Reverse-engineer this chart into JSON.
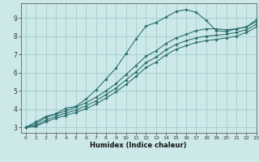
{
  "title": "",
  "xlabel": "Humidex (Indice chaleur)",
  "bg_color": "#cce8e8",
  "grid_color": "#aad0d0",
  "line_color": "#2d7070",
  "xlim": [
    -0.5,
    23
  ],
  "ylim": [
    2.7,
    9.8
  ],
  "xticks": [
    0,
    1,
    2,
    3,
    4,
    5,
    6,
    7,
    8,
    9,
    10,
    11,
    12,
    13,
    14,
    15,
    16,
    17,
    18,
    19,
    20,
    21,
    22,
    23
  ],
  "yticks": [
    3,
    4,
    5,
    6,
    7,
    8,
    9
  ],
  "series": [
    {
      "x": [
        0,
        1,
        2,
        3,
        4,
        5,
        6,
        7,
        8,
        9,
        10,
        11,
        12,
        13,
        14,
        15,
        16,
        17,
        18,
        19,
        20,
        21,
        22,
        23
      ],
      "y": [
        3.0,
        3.3,
        3.6,
        3.75,
        4.05,
        4.15,
        4.55,
        5.05,
        5.65,
        6.25,
        7.05,
        7.85,
        8.55,
        8.75,
        9.05,
        9.35,
        9.45,
        9.3,
        8.85,
        8.3,
        8.25,
        8.4,
        8.5,
        8.9
      ]
    },
    {
      "x": [
        0,
        1,
        2,
        3,
        4,
        5,
        6,
        7,
        8,
        9,
        10,
        11,
        12,
        13,
        14,
        15,
        16,
        17,
        18,
        19,
        20,
        21,
        22,
        23
      ],
      "y": [
        3.0,
        3.2,
        3.55,
        3.72,
        3.9,
        4.1,
        4.35,
        4.65,
        5.0,
        5.4,
        5.9,
        6.4,
        6.9,
        7.2,
        7.6,
        7.9,
        8.1,
        8.3,
        8.4,
        8.4,
        8.35,
        8.4,
        8.5,
        8.8
      ]
    },
    {
      "x": [
        0,
        1,
        2,
        3,
        4,
        5,
        6,
        7,
        8,
        9,
        10,
        11,
        12,
        13,
        14,
        15,
        16,
        17,
        18,
        19,
        20,
        21,
        22,
        23
      ],
      "y": [
        3.0,
        3.1,
        3.4,
        3.6,
        3.78,
        3.95,
        4.18,
        4.45,
        4.8,
        5.15,
        5.6,
        6.05,
        6.55,
        6.85,
        7.25,
        7.55,
        7.75,
        7.9,
        8.0,
        8.05,
        8.1,
        8.2,
        8.35,
        8.65
      ]
    },
    {
      "x": [
        0,
        1,
        2,
        3,
        4,
        5,
        6,
        7,
        8,
        9,
        10,
        11,
        12,
        13,
        14,
        15,
        16,
        17,
        18,
        19,
        20,
        21,
        22,
        23
      ],
      "y": [
        3.0,
        3.05,
        3.3,
        3.5,
        3.65,
        3.82,
        4.02,
        4.28,
        4.6,
        4.95,
        5.35,
        5.8,
        6.28,
        6.58,
        6.98,
        7.28,
        7.48,
        7.65,
        7.75,
        7.82,
        7.9,
        8.0,
        8.2,
        8.5
      ]
    }
  ]
}
